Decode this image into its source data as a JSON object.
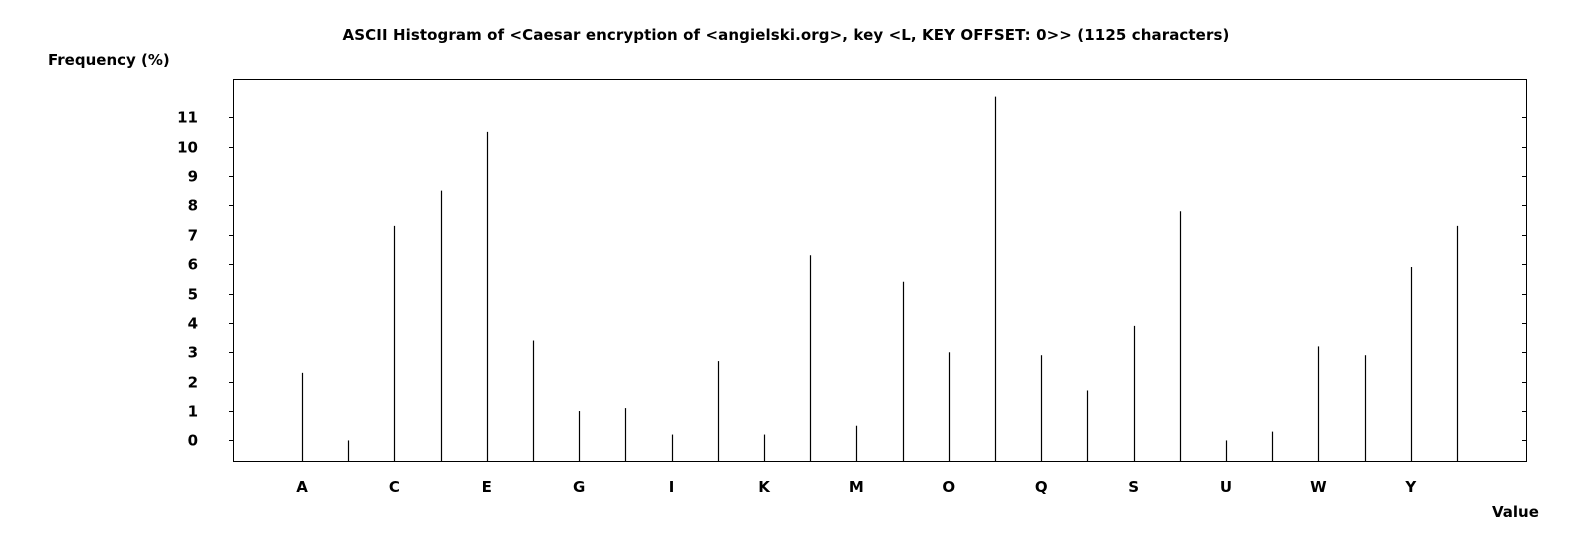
{
  "chart_data": {
    "type": "bar",
    "title": "ASCII Histogram of <Caesar encryption of <angielski.org>, key <L, KEY OFFSET: 0>> (1125 characters)",
    "ylabel": "Frequency (%)",
    "xlabel": "Value",
    "yticks": [
      0,
      1,
      2,
      3,
      4,
      5,
      6,
      7,
      8,
      9,
      10,
      11
    ],
    "ylim": [
      -0.7,
      12.3
    ],
    "categories": [
      "A",
      "B",
      "C",
      "D",
      "E",
      "F",
      "G",
      "H",
      "I",
      "J",
      "K",
      "L",
      "M",
      "N",
      "O",
      "P",
      "Q",
      "R",
      "S",
      "T",
      "U",
      "V",
      "W",
      "X",
      "Y",
      "Z"
    ],
    "xtick_labels": [
      "A",
      "C",
      "E",
      "G",
      "I",
      "K",
      "M",
      "O",
      "Q",
      "S",
      "U",
      "W",
      "Y"
    ],
    "values": [
      2.3,
      0.0,
      7.3,
      8.5,
      10.5,
      3.4,
      1.0,
      1.1,
      0.2,
      2.7,
      0.2,
      6.3,
      0.5,
      5.4,
      3.0,
      11.7,
      2.9,
      1.7,
      3.9,
      7.8,
      0.0,
      0.3,
      3.2,
      2.9,
      5.9,
      7.3
    ],
    "grid": false,
    "legend": "none"
  }
}
